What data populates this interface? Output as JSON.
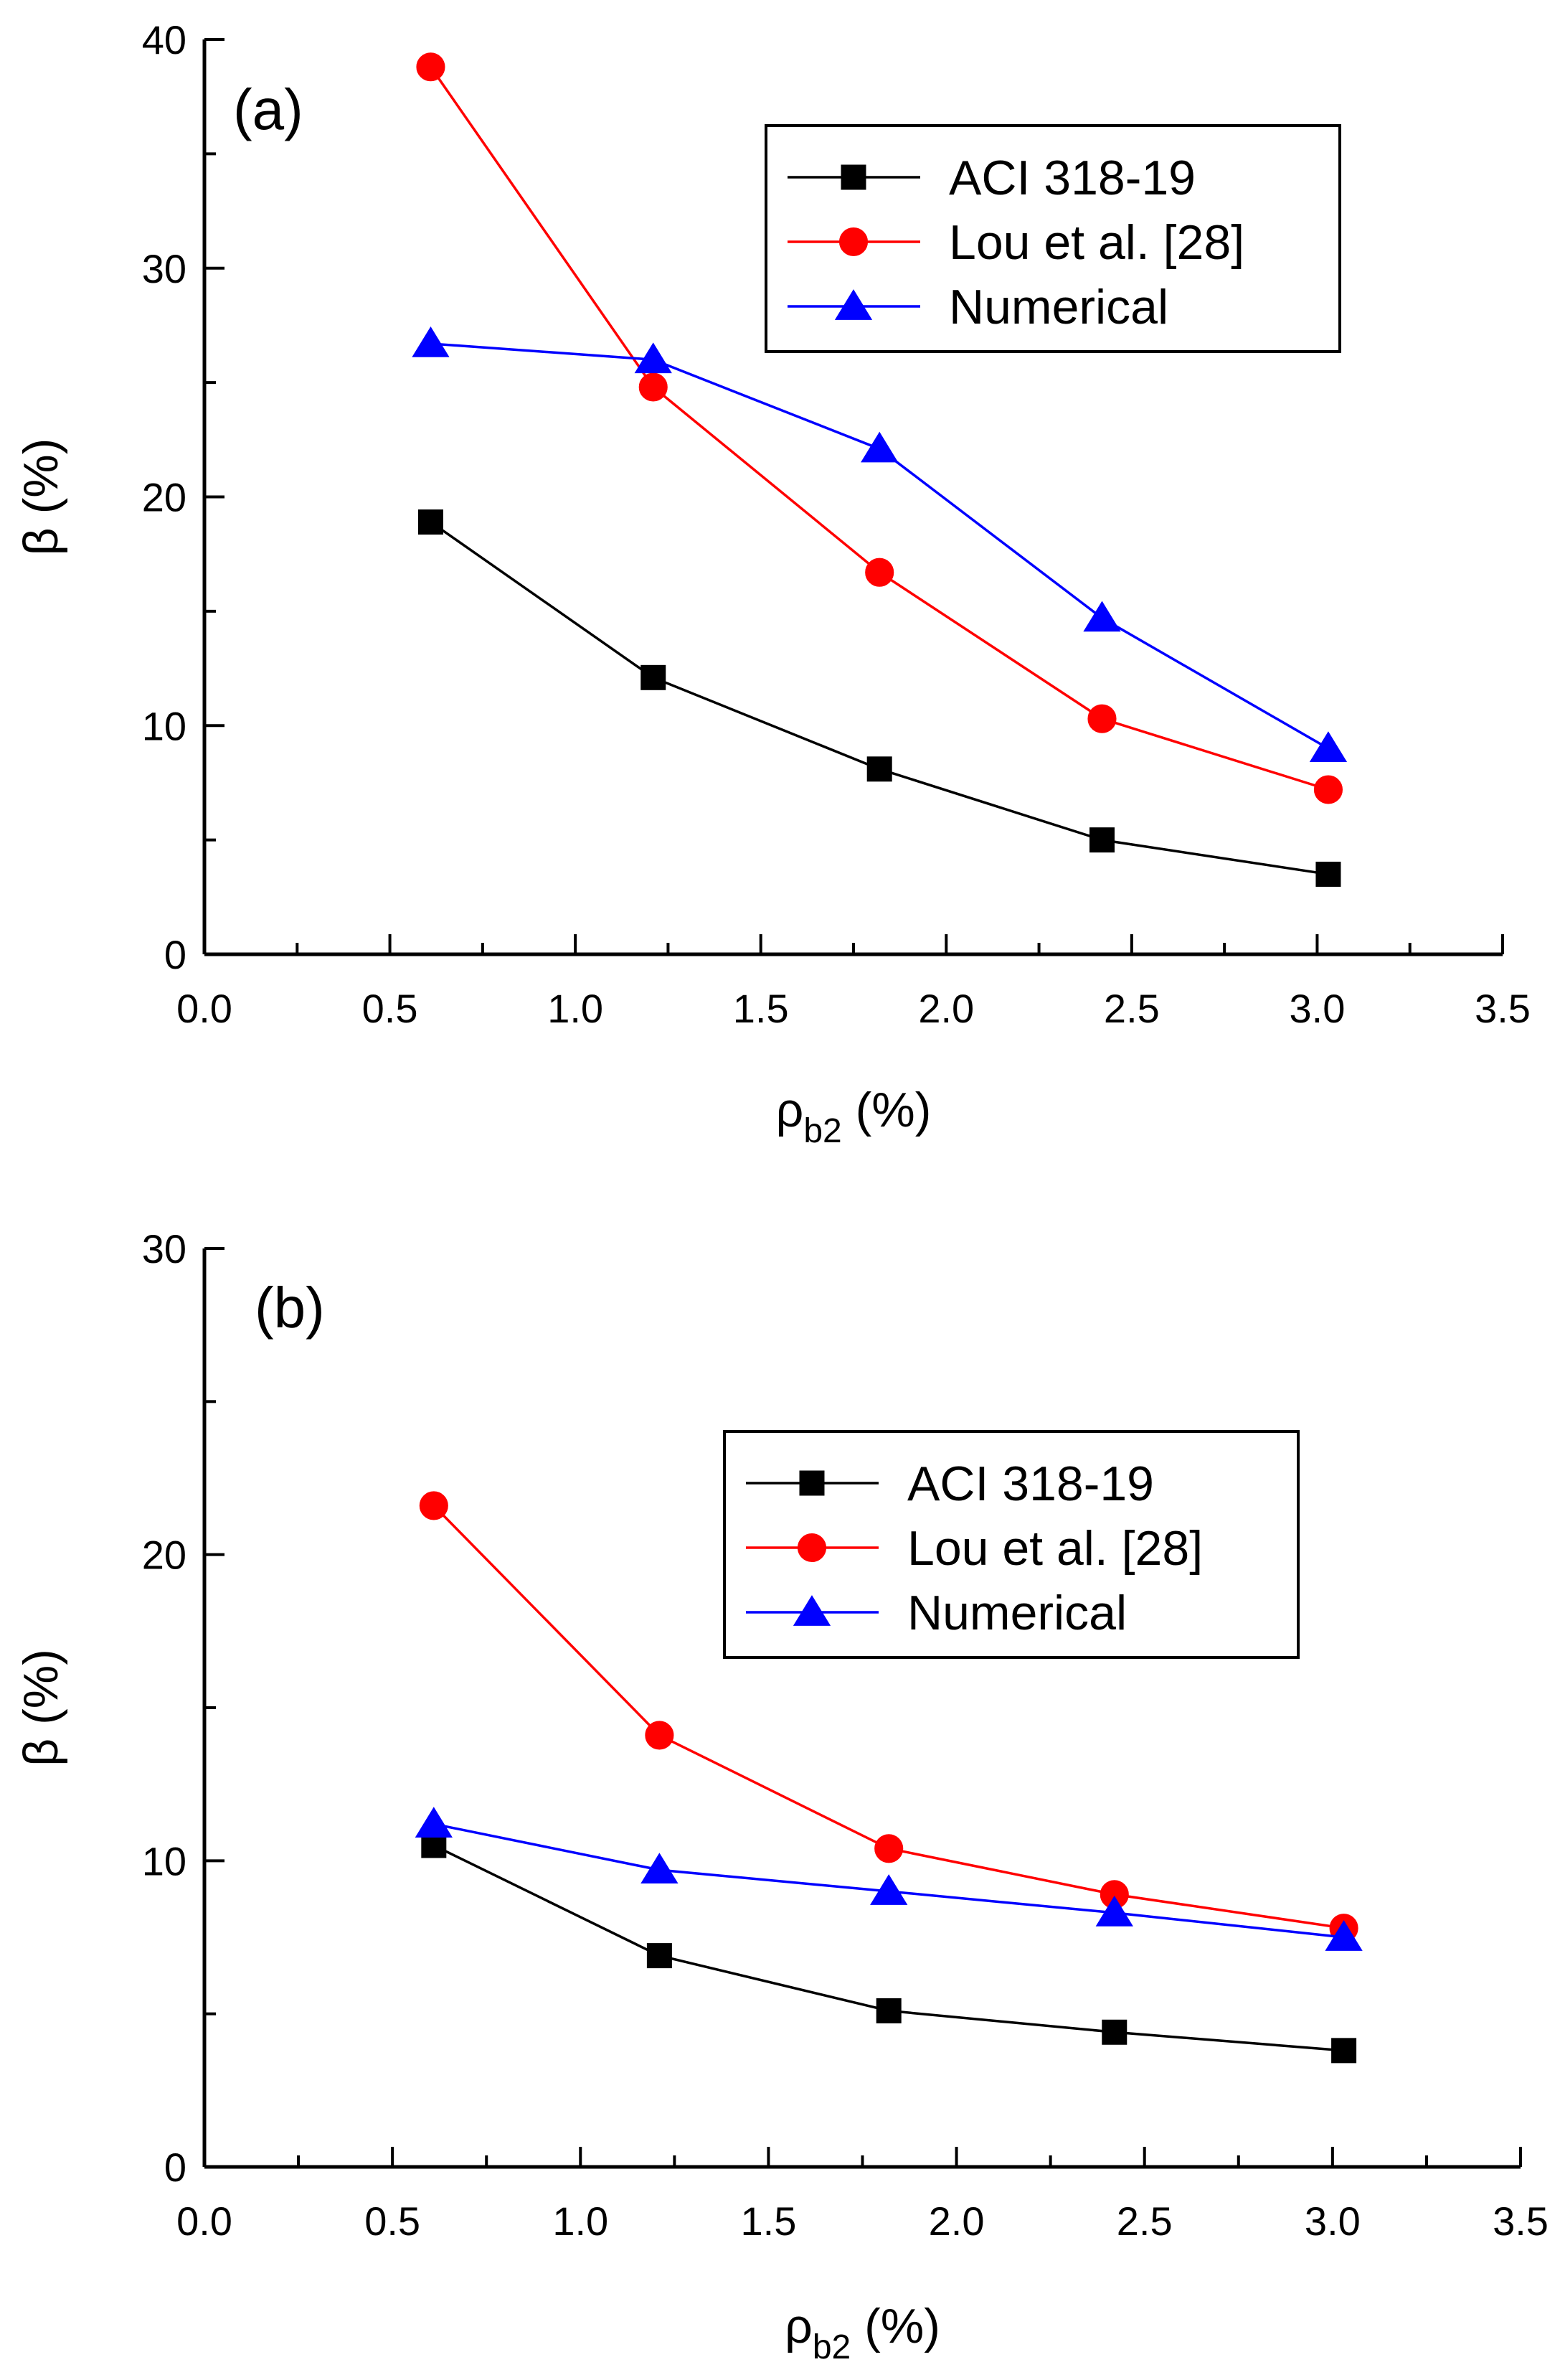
{
  "colors": {
    "ACI 318-19": "#000000",
    "Lou et al. [28]": "#ff0000",
    "Numerical": "#0000ff"
  },
  "chart_data": [
    {
      "type": "line",
      "panel_label": "(a)",
      "xlabel": "ρb2 (%)",
      "xlabel_main": "ρ",
      "xlabel_sub": "b2",
      "xlabel_tail": " (%)",
      "ylabel": "β (%)",
      "xlim": [
        0.0,
        3.5
      ],
      "ylim": [
        0,
        40
      ],
      "xticks": [
        "0.0",
        "0.5",
        "1.0",
        "1.5",
        "2.0",
        "2.5",
        "3.0",
        "3.5"
      ],
      "yticks": [
        "0",
        "10",
        "20",
        "30",
        "40"
      ],
      "x": [
        0.61,
        1.21,
        1.82,
        2.42,
        3.03
      ],
      "legend_position": "top-right",
      "series": [
        {
          "name": "ACI 318-19",
          "marker": "square",
          "values": [
            18.9,
            12.1,
            8.1,
            5.0,
            3.5
          ]
        },
        {
          "name": "Lou et al. [28]",
          "marker": "circle",
          "values": [
            38.8,
            24.8,
            16.7,
            10.3,
            7.2
          ]
        },
        {
          "name": "Numerical",
          "marker": "triangle",
          "values": [
            26.7,
            26.0,
            22.1,
            14.7,
            9.0
          ]
        }
      ]
    },
    {
      "type": "line",
      "panel_label": "(b)",
      "xlabel": "ρb2 (%)",
      "xlabel_main": "ρ",
      "xlabel_sub": "b2",
      "xlabel_tail": " (%)",
      "ylabel": "β (%)",
      "xlim": [
        0.0,
        3.5
      ],
      "ylim": [
        0,
        30
      ],
      "xticks": [
        "0.0",
        "0.5",
        "1.0",
        "1.5",
        "2.0",
        "2.5",
        "3.0",
        "3.5"
      ],
      "yticks": [
        "0",
        "10",
        "20",
        "30"
      ],
      "x": [
        0.61,
        1.21,
        1.82,
        2.42,
        3.03
      ],
      "legend_position": "top-right",
      "series": [
        {
          "name": "ACI 318-19",
          "marker": "square",
          "values": [
            10.5,
            6.9,
            5.1,
            4.4,
            3.8
          ]
        },
        {
          "name": "Lou et al. [28]",
          "marker": "circle",
          "values": [
            21.6,
            14.1,
            10.4,
            8.9,
            7.8
          ]
        },
        {
          "name": "Numerical",
          "marker": "triangle",
          "values": [
            11.2,
            9.7,
            9.0,
            8.3,
            7.5
          ]
        }
      ]
    }
  ]
}
